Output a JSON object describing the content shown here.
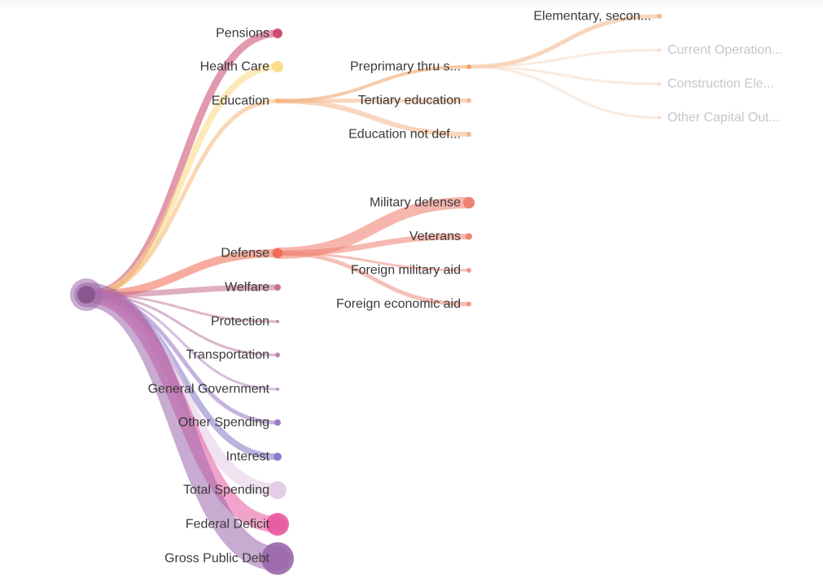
{
  "root": {
    "id": "root",
    "color": "#9b6aa8"
  },
  "nodes": [
    {
      "id": "pensions",
      "parent": "root",
      "label": "Pensions",
      "color": "#c9466a",
      "weight": 9,
      "r": 6
    },
    {
      "id": "health",
      "parent": "root",
      "label": "Health Care",
      "color": "#fbd97f",
      "weight": 8,
      "r": 7
    },
    {
      "id": "education",
      "parent": "root",
      "label": "Education",
      "color": "#f6b676",
      "weight": 5,
      "r": 3
    },
    {
      "id": "defense",
      "parent": "root",
      "label": "Defense",
      "color": "#f0684f",
      "weight": 10,
      "r": 6
    },
    {
      "id": "welfare",
      "parent": "root",
      "label": "Welfare",
      "color": "#c46c8e",
      "weight": 7,
      "r": 4
    },
    {
      "id": "protection",
      "parent": "root",
      "label": "Protection",
      "color": "#c37fa3",
      "weight": 3,
      "r": 2
    },
    {
      "id": "transport",
      "parent": "root",
      "label": "Transportation",
      "color": "#b87aa8",
      "weight": 3,
      "r": 3
    },
    {
      "id": "general",
      "parent": "root",
      "label": "General Government",
      "color": "#b08bc2",
      "weight": 3,
      "r": 2
    },
    {
      "id": "other",
      "parent": "root",
      "label": "Other Spending",
      "color": "#9574c2",
      "weight": 5,
      "r": 4
    },
    {
      "id": "interest",
      "parent": "root",
      "label": "Interest",
      "color": "#8474c4",
      "weight": 8,
      "r": 5
    },
    {
      "id": "total",
      "parent": "root",
      "label": "Total Spending",
      "color": "#e3cbe3",
      "weight": 16,
      "r": 11
    },
    {
      "id": "deficit",
      "parent": "root",
      "label": "Federal Deficit",
      "color": "#e8579e",
      "weight": 20,
      "r": 14
    },
    {
      "id": "debt",
      "parent": "root",
      "label": "Gross Public Debt",
      "color": "#9a66aa",
      "weight": 30,
      "r": 20
    },
    {
      "id": "preprimary",
      "parent": "education",
      "label": "Preprimary thru s...",
      "color": "#f09f5f",
      "weight": 4,
      "r": 3
    },
    {
      "id": "tertiary",
      "parent": "education",
      "label": "Tertiary education",
      "color": "#f4b487",
      "weight": 5,
      "r": 3
    },
    {
      "id": "edu-nd",
      "parent": "education",
      "label": "Education not def...",
      "color": "#f4b487",
      "weight": 6,
      "r": 3
    },
    {
      "id": "milit",
      "parent": "defense",
      "label": "Military defense",
      "color": "#ef7a6a",
      "weight": 14,
      "r": 7
    },
    {
      "id": "veterans",
      "parent": "defense",
      "label": "Veterans",
      "color": "#ee7d6d",
      "weight": 7,
      "r": 4
    },
    {
      "id": "fmil",
      "parent": "defense",
      "label": "Foreign military aid",
      "color": "#ef8d7d",
      "weight": 3,
      "r": 3
    },
    {
      "id": "fecon",
      "parent": "defense",
      "label": "Foreign economic aid",
      "color": "#ef8d7d",
      "weight": 5,
      "r": 3
    },
    {
      "id": "elem",
      "parent": "preprimary",
      "label": "Elementary, secon...",
      "color": "#f1b487",
      "weight": 5,
      "r": 3
    },
    {
      "id": "curop",
      "parent": "preprimary",
      "label": "Current Operation...",
      "color": "#f7d2bd",
      "weight": 3,
      "r": 2,
      "faded": true
    },
    {
      "id": "constr",
      "parent": "preprimary",
      "label": "Construction Ele...",
      "color": "#f7d2bd",
      "weight": 3,
      "r": 2,
      "faded": true
    },
    {
      "id": "capout",
      "parent": "preprimary",
      "label": "Other Capital Out...",
      "color": "#f7d2bd",
      "weight": 3,
      "r": 2,
      "faded": true
    }
  ]
}
